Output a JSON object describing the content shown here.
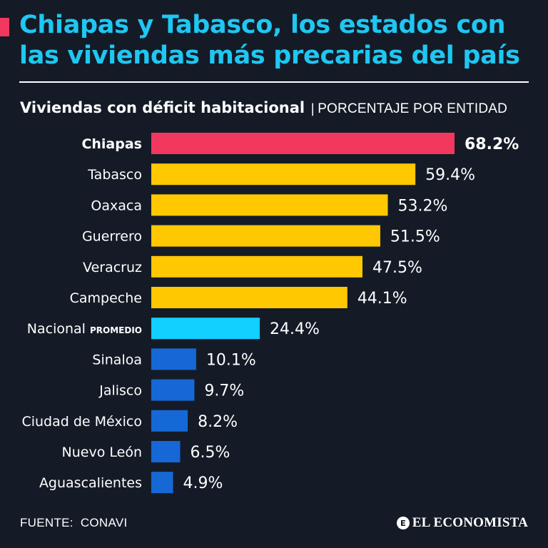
{
  "headline": "Chiapas y Tabasco, los estados con las viviendas más precarias del país",
  "subtitle": {
    "main": "Viviendas con déficit habitacional",
    "separator": "|",
    "unit": "PORCENTAJE POR ENTIDAD"
  },
  "colors": {
    "background": "#141b27",
    "accent": "#f2385f",
    "headline": "#1fc7f2",
    "highlight": "#f2385f",
    "high": "#ffc800",
    "average": "#12d0ff",
    "low": "#1668d6"
  },
  "chart_data": {
    "type": "bar",
    "orientation": "horizontal",
    "title": "Viviendas con déficit habitacional",
    "units": "PORCENTAJE POR ENTIDAD",
    "categories": [
      "Chiapas",
      "Tabasco",
      "Oaxaca",
      "Guerrero",
      "Veracruz",
      "Campeche",
      "Nacional",
      "Sinaloa",
      "Jalisco",
      "Ciudad de México",
      "Nuevo León",
      "Aguascalientes"
    ],
    "category_notes": [
      "",
      "",
      "",
      "",
      "",
      "",
      "PROMEDIO",
      "",
      "",
      "",
      "",
      ""
    ],
    "values": [
      68.2,
      59.4,
      53.2,
      51.5,
      47.5,
      44.1,
      24.4,
      10.1,
      9.7,
      8.2,
      6.5,
      4.9
    ],
    "value_labels": [
      "68.2%",
      "59.4%",
      "53.2%",
      "51.5%",
      "47.5%",
      "44.1%",
      "24.4%",
      "10.1%",
      "9.7%",
      "8.2%",
      "6.5%",
      "4.9%"
    ],
    "color_groups": [
      "highlight",
      "high",
      "high",
      "high",
      "high",
      "high",
      "average",
      "low",
      "low",
      "low",
      "low",
      "low"
    ],
    "highlighted": [
      true,
      false,
      false,
      false,
      false,
      false,
      false,
      false,
      false,
      false,
      false,
      false
    ],
    "xlim": [
      0,
      68.2
    ],
    "grid": false
  },
  "footer": {
    "source_label": "FUENTE:",
    "source_name": "CONAVI",
    "brand": "EL ECONOMISTA",
    "brand_icon": "el-economista-logo-icon"
  }
}
